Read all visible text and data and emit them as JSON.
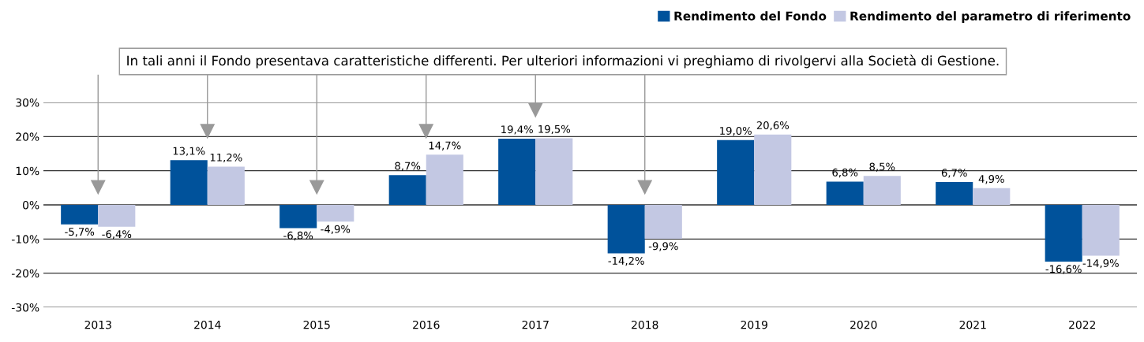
{
  "chart_data": {
    "type": "bar",
    "categories": [
      "2013",
      "2014",
      "2015",
      "2016",
      "2017",
      "2018",
      "2019",
      "2020",
      "2021",
      "2022"
    ],
    "series": [
      {
        "name": "Rendimento del Fondo",
        "color": "#00529b",
        "values": [
          -5.7,
          13.1,
          -6.8,
          8.7,
          19.4,
          -14.2,
          19.0,
          6.8,
          6.7,
          -16.6
        ],
        "value_labels": [
          "-5,7%",
          "13,1%",
          "-6,8%",
          "8,7%",
          "19,4%",
          "-14,2%",
          "19,0%",
          "6,8%",
          "6,7%",
          "-16,6%"
        ]
      },
      {
        "name": "Rendimento del parametro di riferimento",
        "color": "#c3c8e3",
        "values": [
          -6.4,
          11.2,
          -4.9,
          14.7,
          19.5,
          -9.9,
          20.6,
          8.5,
          4.9,
          -14.9
        ],
        "value_labels": [
          "-6,4%",
          "11,2%",
          "-4,9%",
          "14,7%",
          "19,5%",
          "-9,9%",
          "20,6%",
          "8,5%",
          "4,9%",
          "-14,9%"
        ]
      }
    ],
    "ylim": [
      -30,
      30
    ],
    "yticks": [
      {
        "value": -30,
        "label": "-30%"
      },
      {
        "value": -20,
        "label": "-20%"
      },
      {
        "value": -10,
        "label": "-10%"
      },
      {
        "value": 0,
        "label": "0%"
      },
      {
        "value": 10,
        "label": "10%"
      },
      {
        "value": 20,
        "label": "20%"
      },
      {
        "value": 30,
        "label": "30%"
      }
    ],
    "grid": "y",
    "legend": "top right",
    "annotations": [
      "In tali anni il Fondo presentava caratteristiche differenti. Per ulteriori informazioni vi preghiamo di rivolgervi alla Società di Gestione."
    ]
  }
}
